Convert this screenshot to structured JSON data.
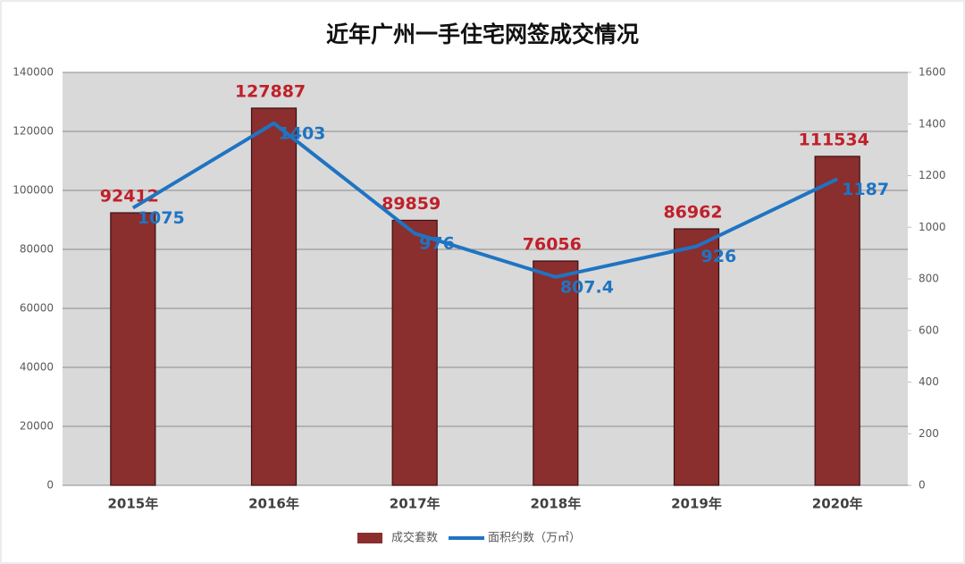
{
  "chart_data": {
    "type": "bar",
    "title": "近年广州一手住宅网签成交情况",
    "categories": [
      "2015年",
      "2016年",
      "2017年",
      "2018年",
      "2019年",
      "2020年"
    ],
    "series": [
      {
        "name": "成交套数",
        "type": "bar",
        "color": "#8b2e2e",
        "label_color": "#c0202a",
        "values": [
          92412,
          127887,
          89859,
          76056,
          86962,
          111534
        ]
      },
      {
        "name": "面积约数（万㎡）",
        "type": "line",
        "axis": "y2",
        "color": "#1f74c2",
        "label_color": "#1f74c2",
        "values": [
          1075,
          1403,
          976,
          807.4,
          926,
          1187
        ]
      }
    ],
    "ylim": [
      0,
      140000
    ],
    "yticks": [
      0,
      20000,
      40000,
      60000,
      80000,
      100000,
      120000,
      140000
    ],
    "y2lim": [
      0,
      1600
    ],
    "y2ticks": [
      0,
      200,
      400,
      600,
      800,
      1000,
      1200,
      1400,
      1600
    ],
    "grid": true
  }
}
